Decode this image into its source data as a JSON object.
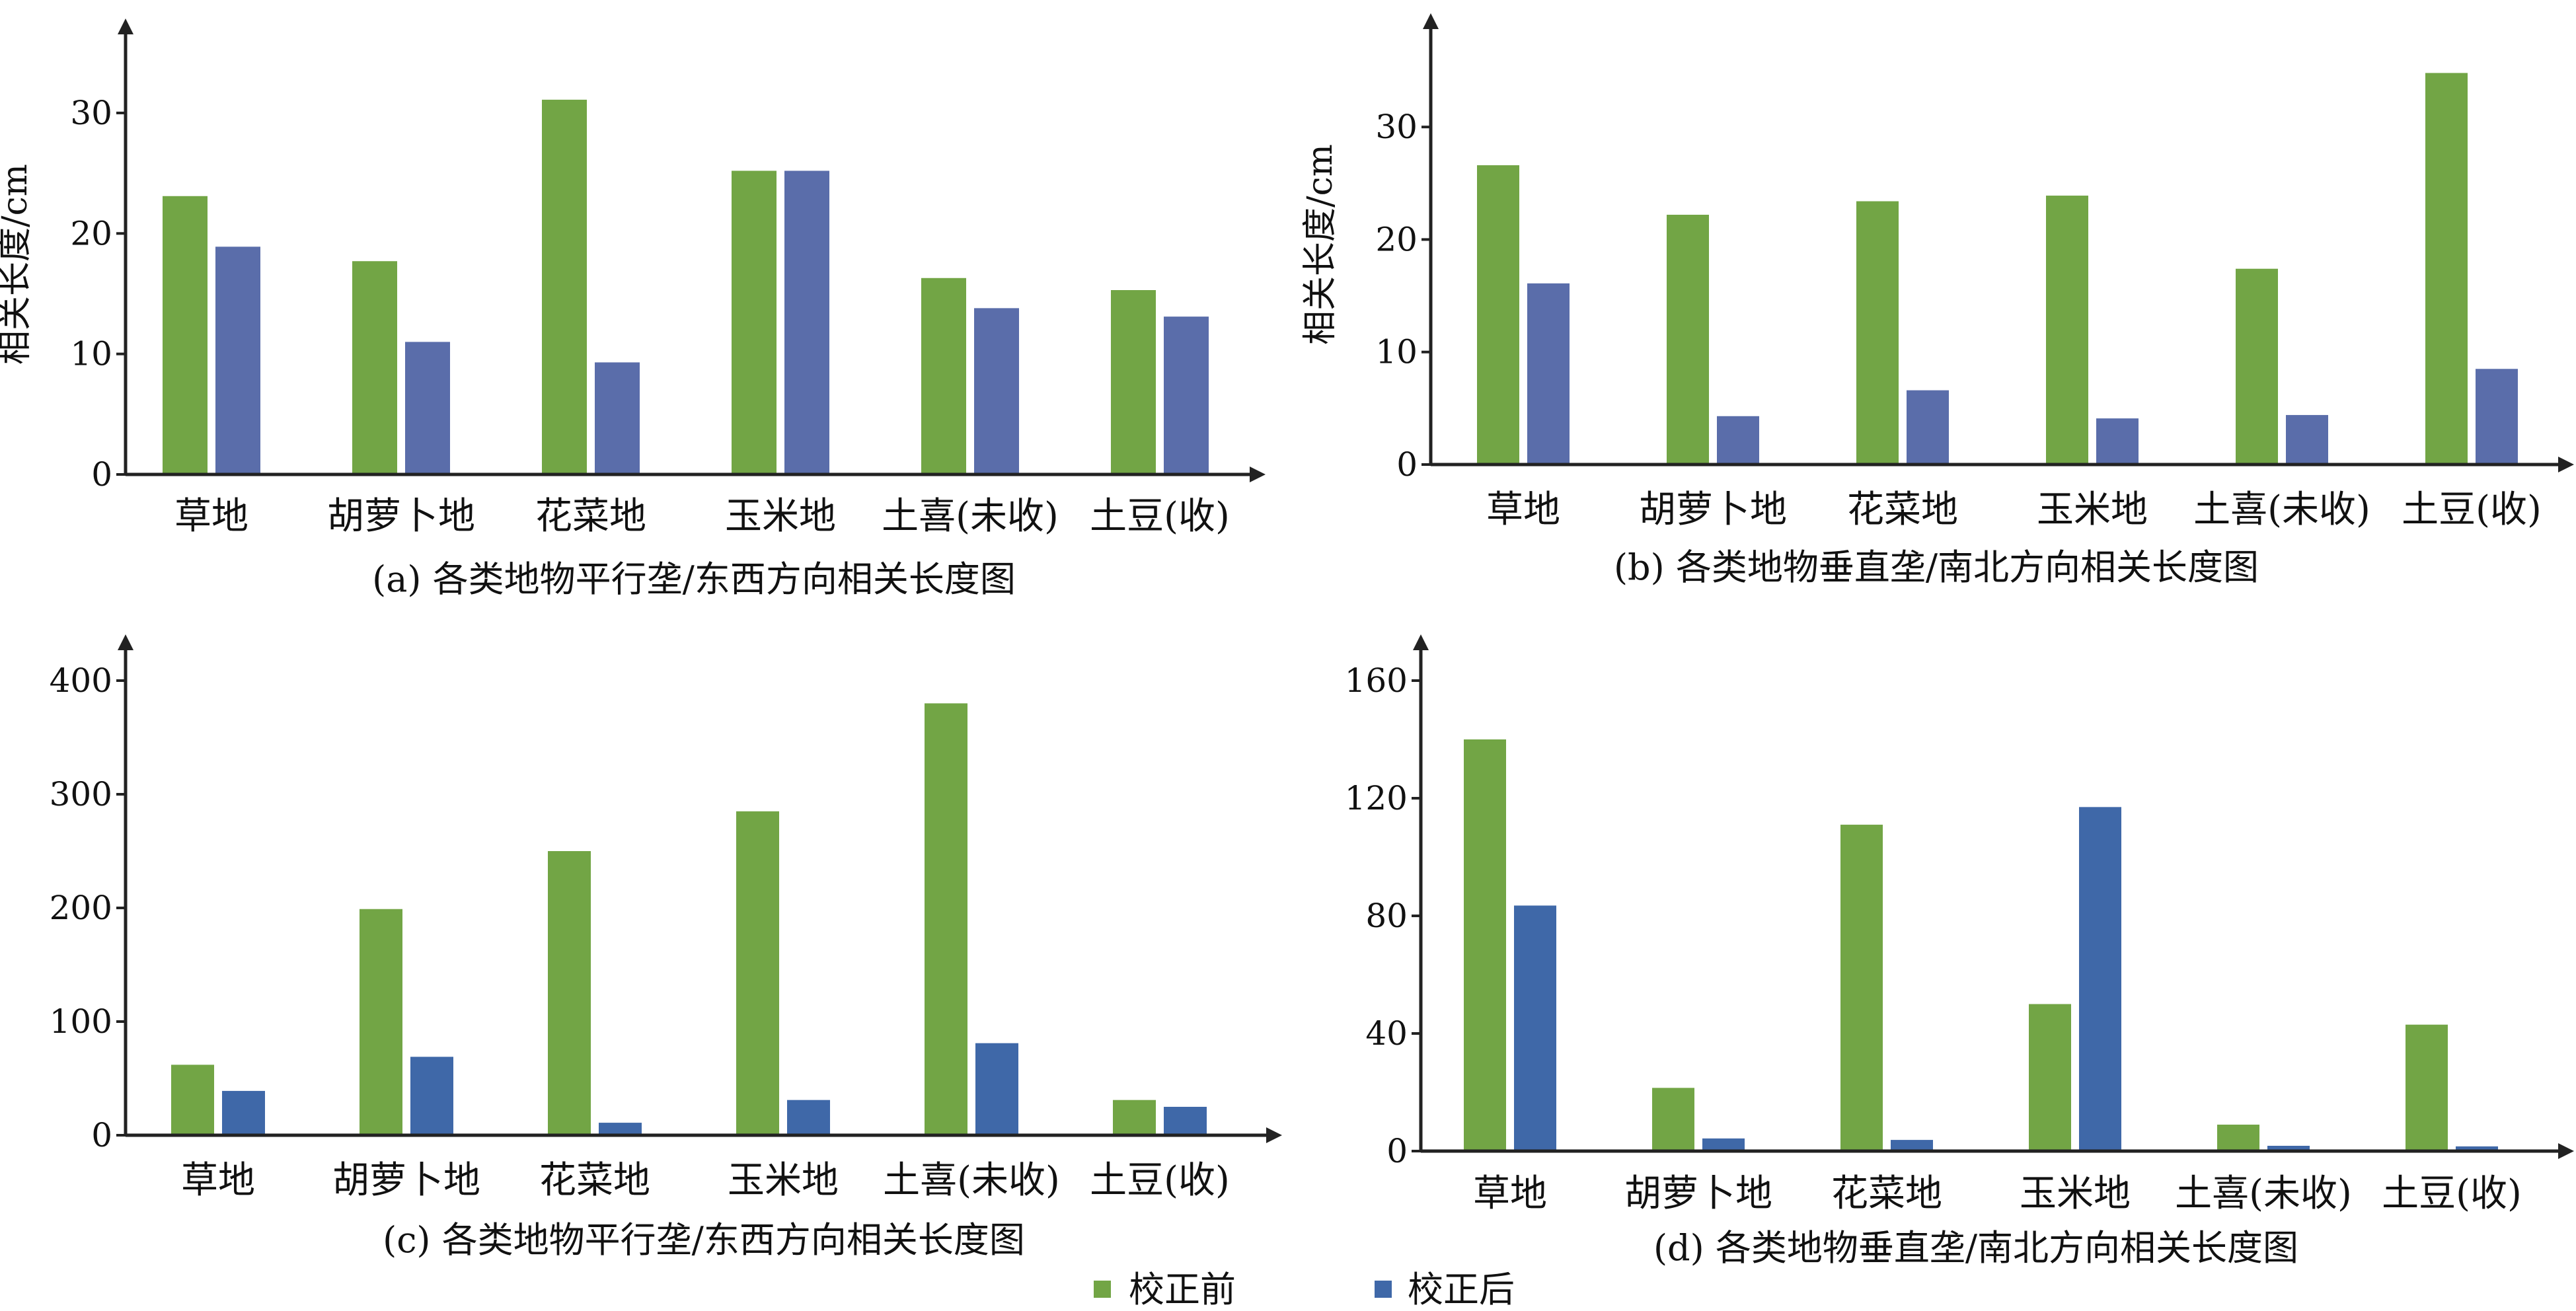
{
  "legend": [
    {
      "label": "校正前",
      "color": "#72A545"
    },
    {
      "label": "校正后",
      "color": "#3F68A8"
    }
  ],
  "chart_data": [
    {
      "type": "bar",
      "title": "(a) 各类地物平行垄/东西方向相关长度图",
      "ylabel": "相关长度/cm",
      "xlabel": "",
      "categories": [
        "草地",
        "胡萝卜地",
        "花菜地",
        "玉米地",
        "土喜(未收)",
        "土豆(收)"
      ],
      "ylim": [
        0,
        34
      ],
      "yticks": [
        0,
        10,
        20,
        30
      ],
      "series": [
        {
          "name": "校正前",
          "color": "#72A545",
          "values": [
            23.1,
            17.7,
            31.1,
            25.2,
            16.3,
            15.3
          ]
        },
        {
          "name": "校正后",
          "color": "#5A6DAA",
          "values": [
            18.9,
            11.0,
            9.3,
            25.2,
            13.8,
            13.1
          ]
        }
      ]
    },
    {
      "type": "bar",
      "title": "(b) 各类地物垂直垄/南北方向相关长度图",
      "ylabel": "相关长度/cm",
      "xlabel": "",
      "categories": [
        "草地",
        "胡萝卜地",
        "花菜地",
        "玉米地",
        "土喜(未收)",
        "土豆(收)"
      ],
      "ylim": [
        0,
        36
      ],
      "yticks": [
        0,
        10,
        20,
        30
      ],
      "series": [
        {
          "name": "校正前",
          "color": "#72A545",
          "values": [
            26.6,
            22.2,
            23.4,
            23.9,
            17.4,
            34.8
          ]
        },
        {
          "name": "校正后",
          "color": "#5A6DAA",
          "values": [
            16.1,
            4.3,
            6.6,
            4.1,
            4.4,
            8.5
          ]
        }
      ]
    },
    {
      "type": "bar",
      "title": "(c) 各类地物平行垄/东西方向相关长度图",
      "ylabel": "",
      "xlabel": "",
      "categories": [
        "草地",
        "胡萝卜地",
        "花菜地",
        "玉米地",
        "土喜(未收)",
        "土豆(收)"
      ],
      "ylim": [
        0,
        400
      ],
      "yticks": [
        0,
        100,
        200,
        300,
        400
      ],
      "series": [
        {
          "name": "校正前",
          "color": "#72A545",
          "values": [
            62,
            199,
            250,
            285,
            380,
            31
          ]
        },
        {
          "name": "校正后",
          "color": "#3F68A8",
          "values": [
            39,
            69,
            11,
            31,
            81,
            25
          ]
        }
      ]
    },
    {
      "type": "bar",
      "title": "(d) 各类地物垂直垄/南北方向相关长度图",
      "ylabel": "",
      "xlabel": "",
      "categories": [
        "草地",
        "胡萝卜地",
        "花菜地",
        "玉米地",
        "土喜(未收)",
        "土豆(收)"
      ],
      "ylim": [
        0,
        160
      ],
      "yticks": [
        0,
        40,
        80,
        120,
        160
      ],
      "series": [
        {
          "name": "校正前",
          "color": "#72A545",
          "values": [
            140,
            21.5,
            111,
            50,
            9,
            43
          ]
        },
        {
          "name": "校正后",
          "color": "#3F68A8",
          "values": [
            83.5,
            4.3,
            3.8,
            117,
            1.8,
            1.6
          ]
        }
      ]
    }
  ]
}
